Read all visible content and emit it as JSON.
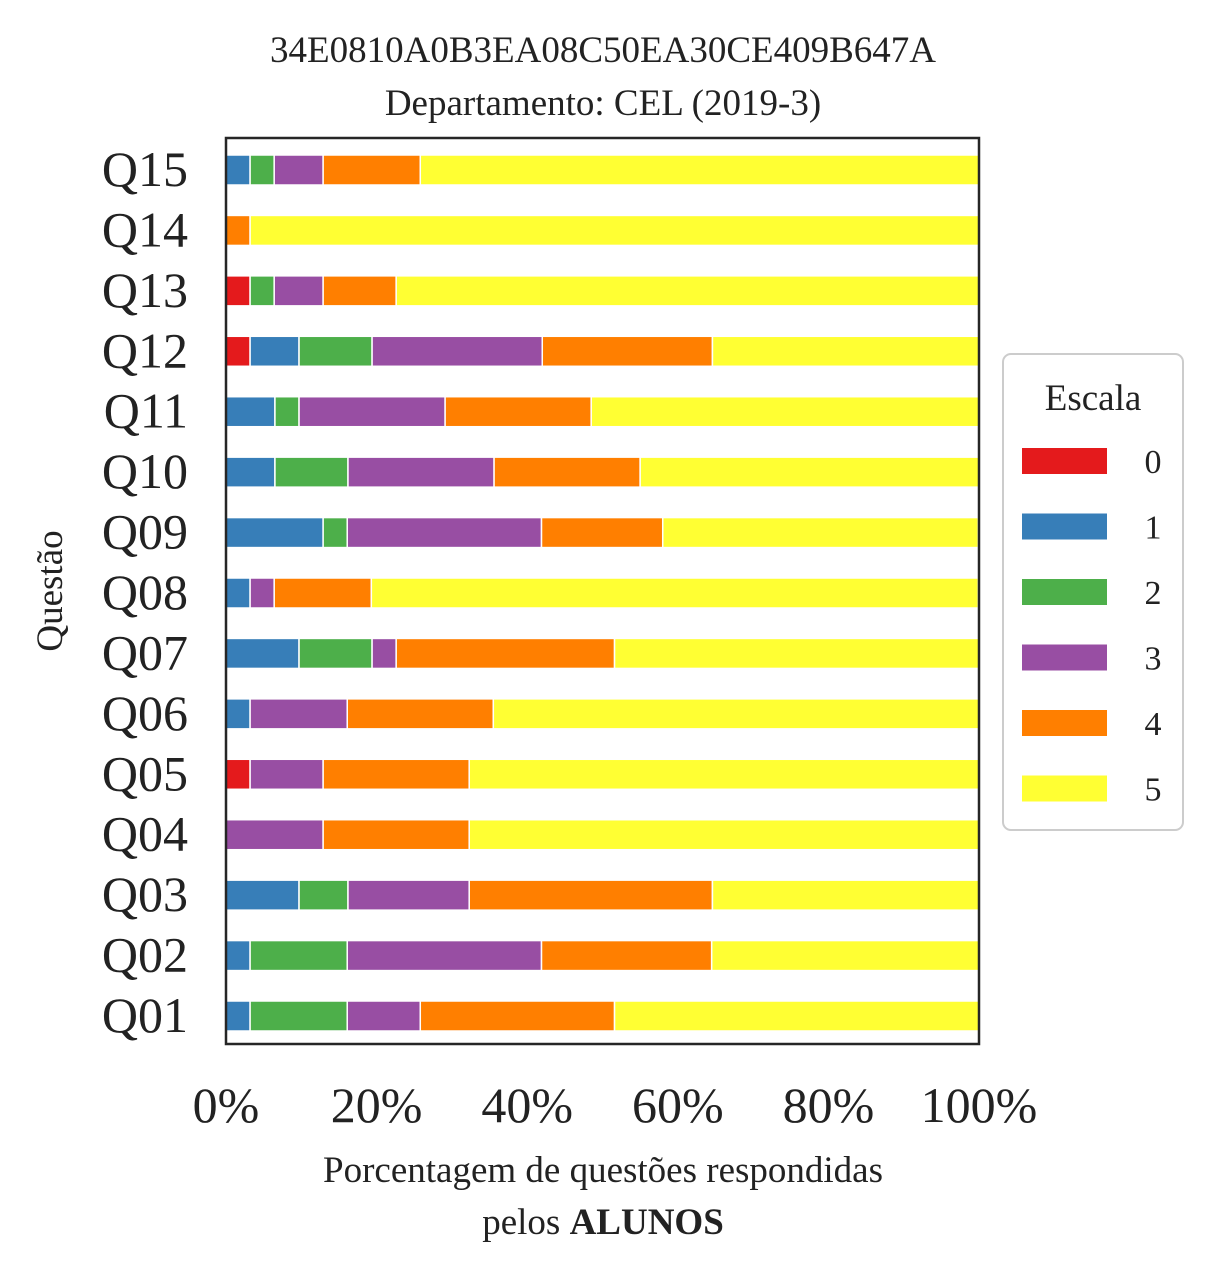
{
  "chart_data": {
    "type": "bar",
    "orientation": "horizontal",
    "stacked": true,
    "title": "34E0810A0B3EA08C50EA30CE409B647A",
    "subtitle": "Departamento: CEL (2019-3)",
    "ylabel": "Questão",
    "xlabel_line1": "Porcentagem de questões respondidas",
    "xlabel_line2_prefix": "pelos ",
    "xlabel_line2_bold": "ALUNOS",
    "xlim": [
      0,
      100
    ],
    "xticks": [
      "0%",
      "20%",
      "40%",
      "60%",
      "80%",
      "100%"
    ],
    "grid": false,
    "legend": {
      "title": "Escala",
      "placement": "right"
    },
    "categories": [
      "Q01",
      "Q02",
      "Q03",
      "Q04",
      "Q05",
      "Q06",
      "Q07",
      "Q08",
      "Q09",
      "Q10",
      "Q11",
      "Q12",
      "Q13",
      "Q14",
      "Q15"
    ],
    "series": [
      {
        "name": "0",
        "color": "#e41a1c",
        "values": [
          0,
          0,
          0,
          0,
          3.2,
          0,
          0,
          0,
          0,
          0,
          0,
          3.2,
          3.2,
          0,
          0
        ]
      },
      {
        "name": "1",
        "color": "#377eb8",
        "values": [
          3.2,
          3.2,
          9.7,
          0,
          0,
          3.2,
          9.7,
          3.2,
          12.9,
          6.5,
          6.5,
          6.5,
          0,
          0,
          3.2
        ]
      },
      {
        "name": "2",
        "color": "#4daf4a",
        "values": [
          12.9,
          12.9,
          6.5,
          0,
          0,
          0,
          9.7,
          0,
          3.2,
          9.7,
          3.2,
          9.7,
          3.2,
          0,
          3.2
        ]
      },
      {
        "name": "3",
        "color": "#984ea3",
        "values": [
          9.7,
          25.8,
          16.1,
          12.9,
          9.7,
          12.9,
          3.2,
          3.2,
          25.8,
          19.4,
          19.4,
          22.6,
          6.5,
          0,
          6.5
        ]
      },
      {
        "name": "4",
        "color": "#ff7f00",
        "values": [
          25.8,
          22.6,
          32.3,
          19.4,
          19.4,
          19.4,
          29.0,
          12.9,
          16.1,
          19.4,
          19.4,
          22.6,
          9.7,
          3.2,
          12.9
        ]
      },
      {
        "name": "5",
        "color": "#ffff33",
        "values": [
          48.4,
          35.5,
          35.5,
          67.7,
          67.7,
          64.5,
          48.4,
          80.6,
          41.9,
          45.2,
          51.6,
          35.5,
          77.4,
          96.8,
          74.2
        ]
      }
    ]
  }
}
